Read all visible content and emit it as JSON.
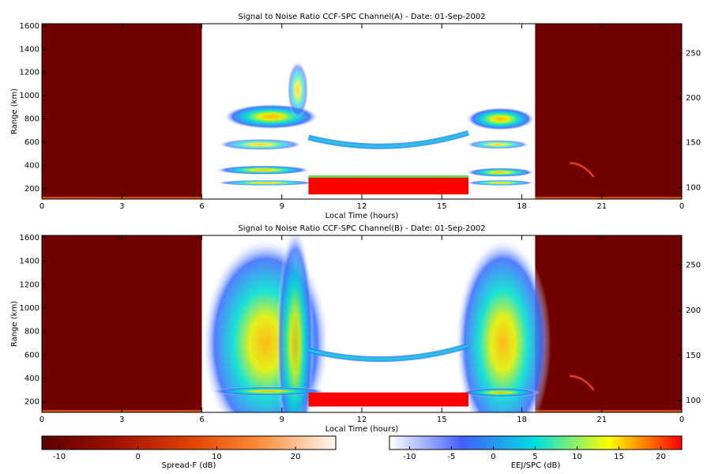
{
  "chart_data": [
    {
      "type": "heatmap",
      "title": "Signal to Noise Ratio CCF-SPC Channel(A) - Date: 01-Sep-2002",
      "xlabel": "Local Time (hours)",
      "ylabel": "Range (km)",
      "xlim": [
        0,
        24
      ],
      "xticks": [
        0,
        3,
        6,
        9,
        12,
        15,
        18,
        21,
        {
          "value": 24,
          "label": "0"
        }
      ],
      "ylim": [
        110,
        1620
      ],
      "yticks": [
        200,
        400,
        600,
        800,
        1000,
        1200,
        1400,
        1600
      ],
      "y2lim": [
        87,
        283
      ],
      "y2ticks": [
        100,
        150,
        200,
        250
      ]
    },
    {
      "type": "heatmap",
      "title": "Signal to Noise Ratio CCF-SPC Channel(B) - Date: 01-Sep-2002",
      "xlabel": "Local Time (hours)",
      "ylabel": "Range (km)",
      "xlim": [
        0,
        24
      ],
      "xticks": [
        0,
        3,
        6,
        9,
        12,
        15,
        18,
        21,
        {
          "value": 24,
          "label": "0"
        }
      ],
      "ylim": [
        110,
        1620
      ],
      "yticks": [
        200,
        400,
        600,
        800,
        1000,
        1200,
        1400,
        1600
      ],
      "y2lim": [
        87,
        283
      ],
      "y2ticks": [
        100,
        150,
        200,
        250
      ]
    },
    {
      "type": "colorbar",
      "label": "Spread-F (dB)",
      "xlim": [
        -12.2,
        25.1
      ],
      "xticks": [
        -10,
        0,
        10,
        20
      ],
      "colors": [
        "#5a0000",
        "#a01000",
        "#e04000",
        "#ff9040",
        "#fff8f0"
      ]
    },
    {
      "type": "colorbar",
      "label": "EEJ/SPC (dB)",
      "xlim": [
        -12.4,
        22.5
      ],
      "xticks": [
        -10,
        -5,
        0,
        5,
        10,
        15,
        20
      ],
      "colors": [
        "#ffffff",
        "#4060ff",
        "#00e0e0",
        "#ffff00",
        "#ff0000"
      ]
    }
  ]
}
